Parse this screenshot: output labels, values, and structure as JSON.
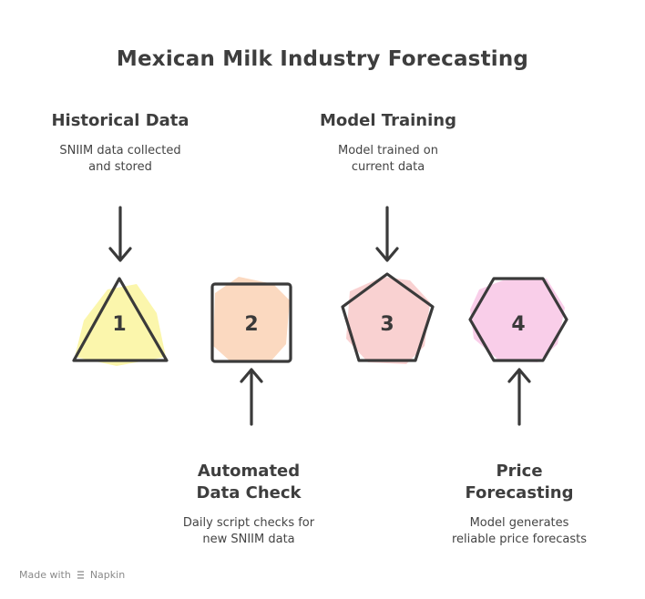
{
  "title": "Mexican Milk Industry Forecasting",
  "steps": [
    {
      "number": "1",
      "title_lines": [
        "Historical Data"
      ],
      "desc_lines": [
        "SNIIM data collected",
        "and stored"
      ],
      "color": "#fbf5a8"
    },
    {
      "number": "2",
      "title_lines": [
        "Automated",
        "Data Check"
      ],
      "desc_lines": [
        "Daily script checks for",
        "new SNIIM data"
      ],
      "color": "#fbd7bd"
    },
    {
      "number": "3",
      "title_lines": [
        "Model Training"
      ],
      "desc_lines": [
        "Model trained on",
        "current data"
      ],
      "color": "#f9cfcf"
    },
    {
      "number": "4",
      "title_lines": [
        "Price",
        "Forecasting"
      ],
      "desc_lines": [
        "Model generates",
        "reliable price forecasts"
      ],
      "color": "#f9cbe8"
    }
  ],
  "footer": {
    "prefix": "Made with",
    "brand": "Napkin",
    "brand_icon": "napkin-logo-icon"
  },
  "colors": {
    "stroke": "#3a3a3a",
    "text": "#3e3e3e"
  }
}
